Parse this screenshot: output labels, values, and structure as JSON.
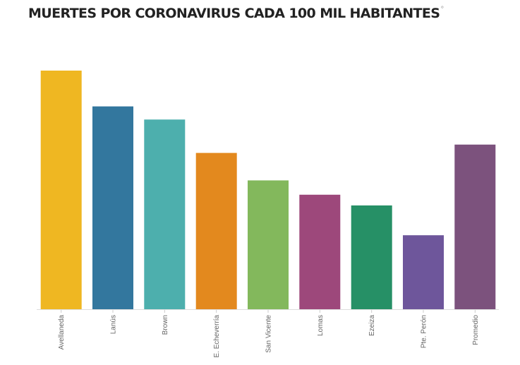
{
  "chart_data": {
    "type": "bar",
    "title": "MUERTES POR CORONAVIRUS CADA 100 MIL HABITANTES",
    "title_mark": "°",
    "xlabel": "",
    "ylabel": "",
    "ylim": [
      0,
      100
    ],
    "grid": false,
    "categories": [
      "Avellaneda",
      "Lanús",
      "Brown",
      "E. Echeverría",
      "San Vicente",
      "Lomas",
      "Ezeiza",
      "Pte. Perón",
      "Promedio"
    ],
    "values": [
      100,
      85,
      79.5,
      65.5,
      54,
      48,
      43.5,
      31,
      69
    ],
    "colors": [
      "#EFB722",
      "#33779E",
      "#4DAFAD",
      "#E3891E",
      "#83B85C",
      "#9D487B",
      "#269066",
      "#6E569B",
      "#7C527D"
    ]
  }
}
